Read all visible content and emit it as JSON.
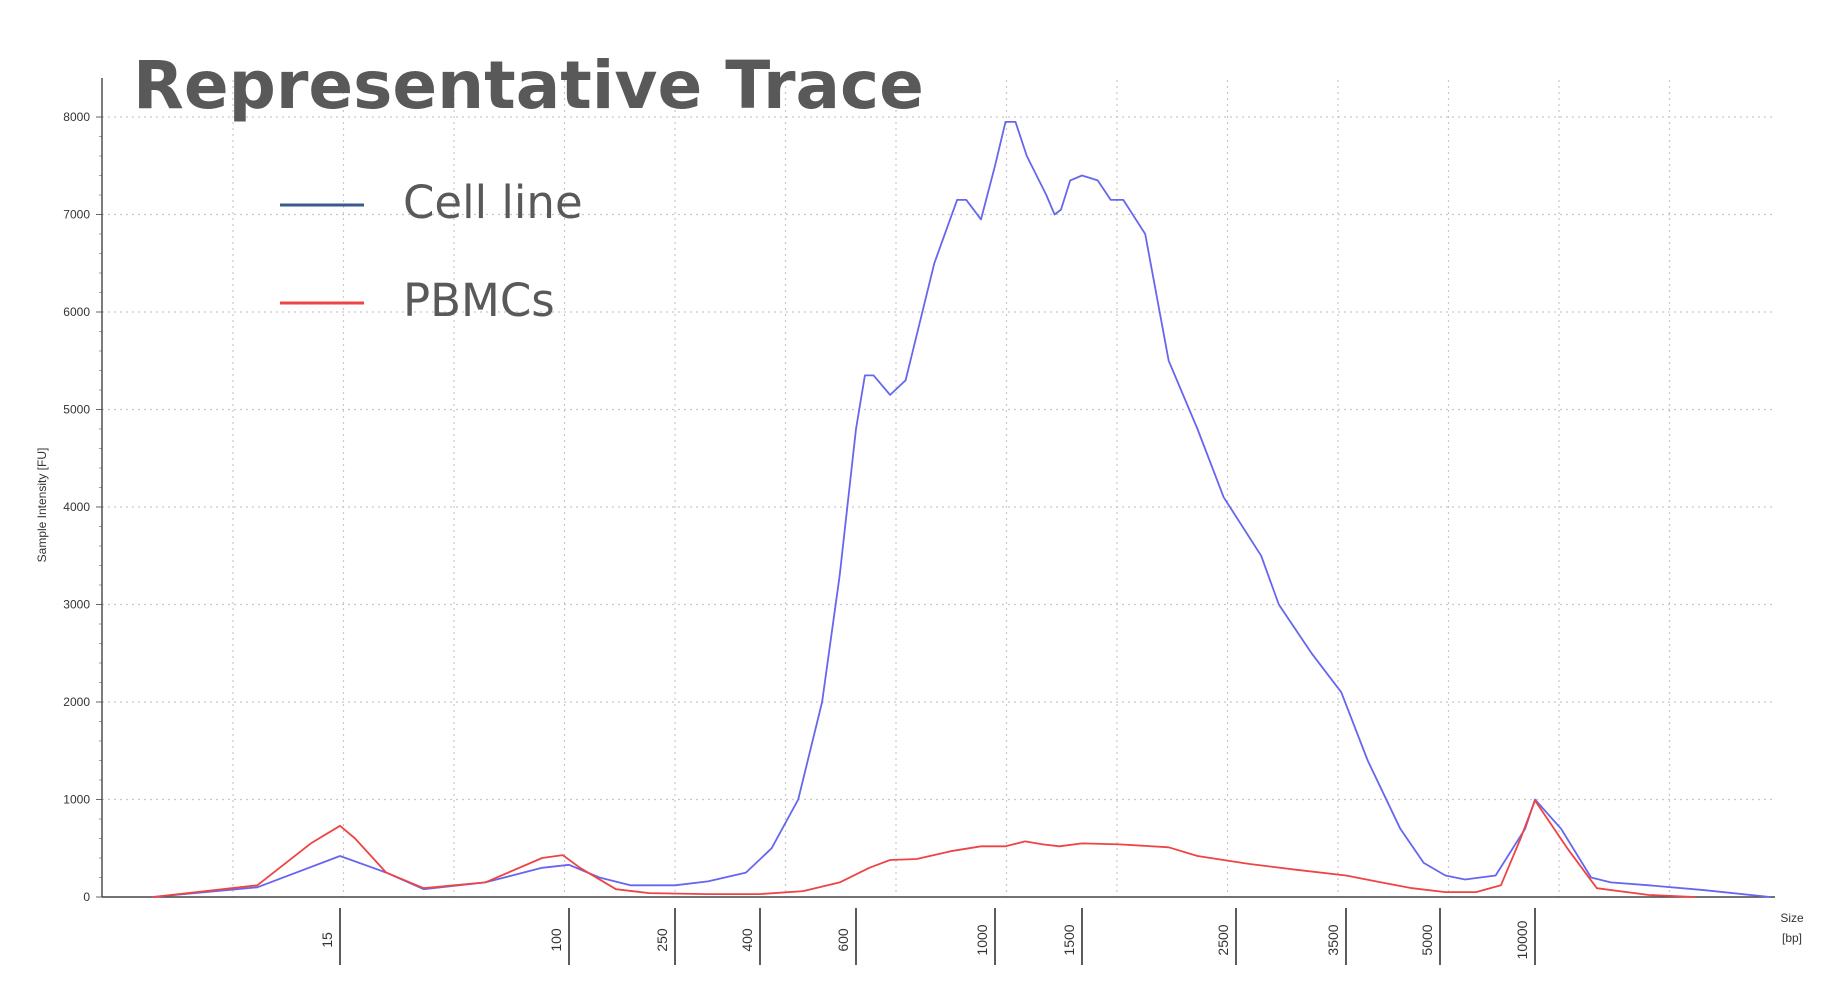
{
  "chart_data": {
    "type": "line",
    "title": "Representative Trace",
    "xlabel": "Size\n[bp]",
    "xlabel_lines": [
      "Size",
      "[bp]"
    ],
    "ylabel": "Sample Intensity [FU]",
    "ylim": [
      0,
      8000
    ],
    "yticks": [
      0,
      1000,
      2000,
      3000,
      4000,
      5000,
      6000,
      7000,
      8000
    ],
    "grid": true,
    "legend_position": "top-left",
    "x_ladder": [
      15,
      100,
      250,
      400,
      600,
      1000,
      1500,
      2500,
      3500,
      5000,
      10000
    ],
    "x_end": 20000,
    "series": [
      {
        "name": "Cell line",
        "color": "#6666ee",
        "legend_color": "#3a5a8c",
        "points": [
          [
            6,
            0
          ],
          [
            10,
            100
          ],
          [
            15,
            420
          ],
          [
            22,
            250
          ],
          [
            30,
            80
          ],
          [
            50,
            150
          ],
          [
            80,
            300
          ],
          [
            100,
            330
          ],
          [
            130,
            200
          ],
          [
            170,
            120
          ],
          [
            250,
            120
          ],
          [
            300,
            160
          ],
          [
            370,
            250
          ],
          [
            420,
            500
          ],
          [
            470,
            1000
          ],
          [
            520,
            2000
          ],
          [
            560,
            3300
          ],
          [
            600,
            4800
          ],
          [
            620,
            5350
          ],
          [
            640,
            5350
          ],
          [
            680,
            5150
          ],
          [
            720,
            5300
          ],
          [
            800,
            6500
          ],
          [
            870,
            7150
          ],
          [
            900,
            7150
          ],
          [
            950,
            6950
          ],
          [
            1000,
            7500
          ],
          [
            1050,
            7950
          ],
          [
            1100,
            7950
          ],
          [
            1160,
            7600
          ],
          [
            1270,
            7200
          ],
          [
            1320,
            7000
          ],
          [
            1360,
            7050
          ],
          [
            1420,
            7350
          ],
          [
            1500,
            7400
          ],
          [
            1580,
            7350
          ],
          [
            1650,
            7150
          ],
          [
            1720,
            7150
          ],
          [
            1850,
            6800
          ],
          [
            2000,
            5500
          ],
          [
            2200,
            4800
          ],
          [
            2400,
            4100
          ],
          [
            2700,
            3500
          ],
          [
            2850,
            3000
          ],
          [
            3150,
            2500
          ],
          [
            3450,
            2100
          ],
          [
            3800,
            1400
          ],
          [
            4300,
            700
          ],
          [
            4700,
            350
          ],
          [
            5200,
            220
          ],
          [
            6000,
            180
          ],
          [
            7500,
            220
          ],
          [
            9300,
            700
          ],
          [
            10000,
            1000
          ],
          [
            10800,
            700
          ],
          [
            11800,
            200
          ],
          [
            12500,
            150
          ],
          [
            14000,
            120
          ],
          [
            16500,
            70
          ],
          [
            20000,
            0
          ]
        ]
      },
      {
        "name": "PBMCs",
        "color": "#ee4444",
        "legend_color": "#ee4444",
        "points": [
          [
            6,
            0
          ],
          [
            10,
            120
          ],
          [
            13,
            550
          ],
          [
            15,
            730
          ],
          [
            17,
            600
          ],
          [
            22,
            250
          ],
          [
            30,
            90
          ],
          [
            50,
            150
          ],
          [
            80,
            400
          ],
          [
            95,
            430
          ],
          [
            110,
            300
          ],
          [
            150,
            80
          ],
          [
            200,
            40
          ],
          [
            300,
            30
          ],
          [
            400,
            30
          ],
          [
            480,
            60
          ],
          [
            560,
            150
          ],
          [
            630,
            300
          ],
          [
            680,
            380
          ],
          [
            750,
            390
          ],
          [
            850,
            470
          ],
          [
            950,
            520
          ],
          [
            1050,
            520
          ],
          [
            1150,
            570
          ],
          [
            1250,
            540
          ],
          [
            1350,
            520
          ],
          [
            1500,
            550
          ],
          [
            1700,
            540
          ],
          [
            2000,
            510
          ],
          [
            2200,
            420
          ],
          [
            2600,
            340
          ],
          [
            3000,
            280
          ],
          [
            3500,
            220
          ],
          [
            4000,
            150
          ],
          [
            4500,
            90
          ],
          [
            5200,
            50
          ],
          [
            6500,
            50
          ],
          [
            7800,
            120
          ],
          [
            9000,
            600
          ],
          [
            10000,
            990
          ],
          [
            11000,
            500
          ],
          [
            12000,
            90
          ],
          [
            14000,
            20
          ],
          [
            16000,
            0
          ]
        ]
      }
    ]
  }
}
